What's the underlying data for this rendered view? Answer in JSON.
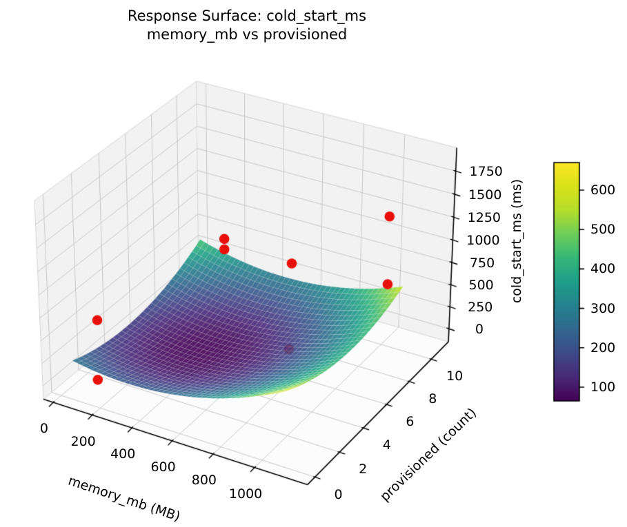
{
  "title": {
    "line1": "Response Surface: cold_start_ms",
    "line2": "memory_mb vs provisioned"
  },
  "chart_data": {
    "type": "surface3d",
    "title": "Response Surface: cold_start_ms\nmemory_mb vs provisioned",
    "xlabel": "memory_mb (MB)",
    "ylabel": "provisioned (count)",
    "zlabel": "cold_start_ms (ms)",
    "x_ticks": [
      0,
      200,
      400,
      600,
      800,
      1000
    ],
    "y_ticks": [
      0,
      2,
      4,
      6,
      8,
      10
    ],
    "z_ticks": [
      0,
      250,
      500,
      750,
      1000,
      1250,
      1500,
      1750
    ],
    "view": {
      "elev": 30,
      "azim": -60,
      "projection": "perspective"
    },
    "surface": {
      "colormap": "viridis",
      "alpha": 0.9,
      "x_domain": [
        64,
        1100
      ],
      "y_domain": [
        0,
        10
      ],
      "z_min": 65,
      "z_max": 664,
      "quadratic": {
        "base": 65,
        "m0": 420,
        "p0": 4.5,
        "amm": 0.00078,
        "app": 8.0,
        "amp": -0.025
      }
    },
    "scatter": {
      "color": "#e8100b",
      "points": [
        {
          "memory_mb": 192,
          "provisioned": 10,
          "cold_start_ms": 540
        },
        {
          "memory_mb": 192,
          "provisioned": 10,
          "cold_start_ms": 420
        },
        {
          "memory_mb": 1024,
          "provisioned": 10,
          "cold_start_ms": 1300
        },
        {
          "memory_mb": 896,
          "provisioned": 4,
          "cold_start_ms": 1400
        },
        {
          "memory_mb": 1024,
          "provisioned": 10,
          "cold_start_ms": 550
        },
        {
          "memory_mb": 768,
          "provisioned": 6,
          "cold_start_ms": 140,
          "occluded": true
        },
        {
          "memory_mb": 128,
          "provisioned": 1,
          "cold_start_ms": 650
        },
        {
          "memory_mb": 192,
          "provisioned": 0,
          "cold_start_ms": 160
        }
      ]
    },
    "colorbar": {
      "ticks": [
        100,
        200,
        300,
        400,
        500,
        600
      ],
      "range_estimate": [
        65,
        670
      ]
    },
    "colors": {
      "scatter": "#e8100b",
      "pane": "#f2f2f2",
      "floor": "#fcfcfc",
      "grid": "#c9c9c9",
      "pane_edge": "#d6d6d6",
      "spine": "#000000",
      "background": "#ffffff"
    },
    "grid": true
  }
}
